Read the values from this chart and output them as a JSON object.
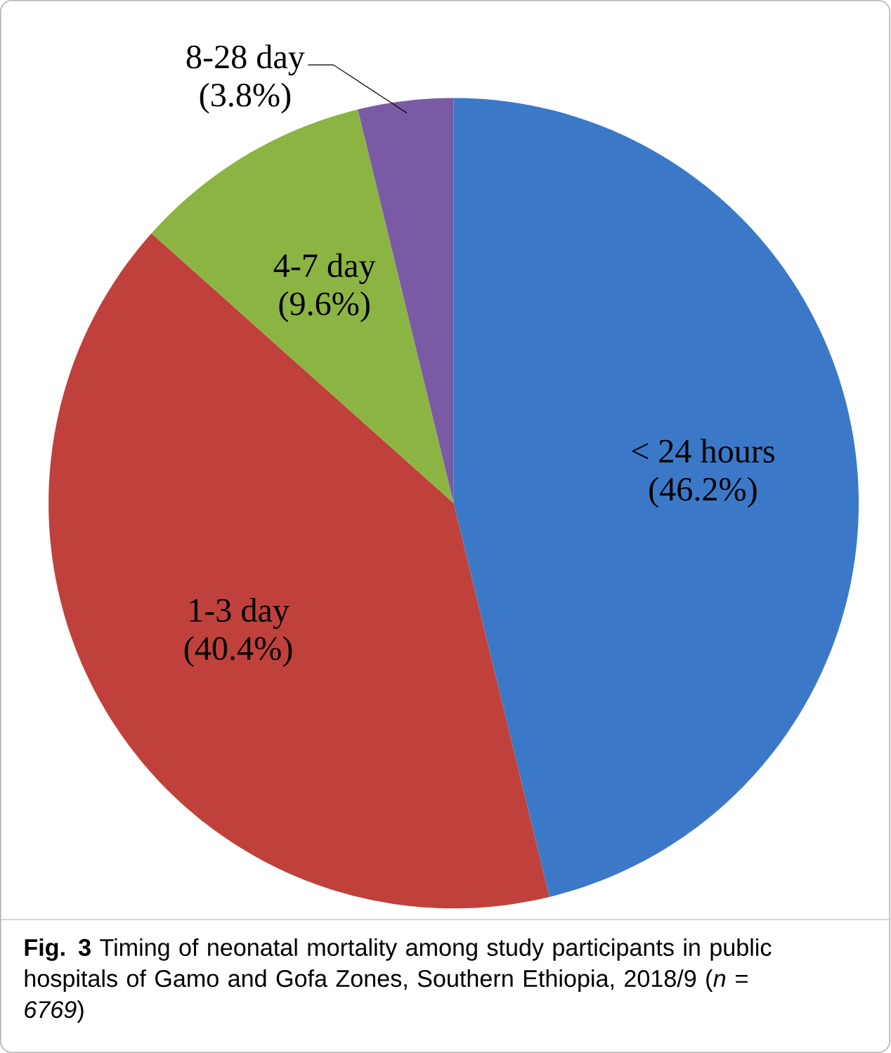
{
  "chart_data": {
    "type": "pie",
    "categories": [
      "< 24 hours",
      "1-3 day",
      "4-7 day",
      "8-28 day"
    ],
    "values": [
      46.2,
      40.4,
      9.6,
      3.8
    ],
    "value_labels": [
      "(46.2%)",
      "(40.4%)",
      "(9.6%)",
      "(3.8%)"
    ],
    "colors": [
      "#3b79c8",
      "#c0413b",
      "#8cb443",
      "#7a5aa5"
    ],
    "annotations": [
      "**Fig. 3** Timing of neonatal mortality among study participants in public hospitals of Gamo and Gofa Zones, Southern Ethiopia, 2018/9 (*n = 6769*)"
    ]
  }
}
